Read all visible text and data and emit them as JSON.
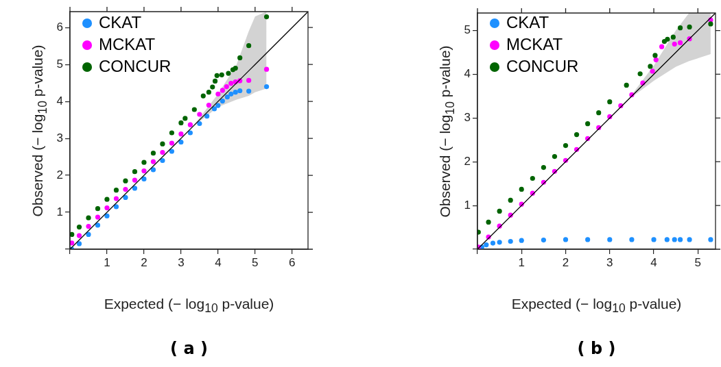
{
  "chart_data": [
    {
      "type": "scatter",
      "xlabel": "Expected (− log$_{10}$ p-value)",
      "ylabel": "Observed (− log$_{10}$ p-value)",
      "annotations": [
        "( a )"
      ],
      "xlim": [
        0,
        6.43
      ],
      "ylim": [
        0,
        6.43
      ],
      "xticks": [
        {
          "value": 0,
          "label": null
        },
        1,
        2,
        3,
        4,
        5,
        6
      ],
      "yticks": [
        {
          "value": 0,
          "label": null
        },
        1,
        2,
        3,
        4,
        5,
        6
      ],
      "grid": false,
      "legend": "top left",
      "marker": "circle",
      "series": [
        {
          "name": "CKAT",
          "color": "#1e90ff",
          "x": [
            0.05,
            0.25,
            0.5,
            0.75,
            1,
            1.25,
            1.5,
            1.75,
            2,
            2.25,
            2.5,
            2.75,
            3,
            3.25,
            3.5,
            3.7,
            3.9,
            4.0,
            4.12,
            4.25,
            4.35,
            4.47,
            4.59,
            4.83,
            5.31
          ],
          "values": [
            0.0,
            0.15,
            0.4,
            0.65,
            0.9,
            1.15,
            1.4,
            1.65,
            1.9,
            2.15,
            2.4,
            2.65,
            2.9,
            3.15,
            3.4,
            3.6,
            3.8,
            3.89,
            4.01,
            4.12,
            4.2,
            4.25,
            4.29,
            4.28,
            4.4
          ]
        },
        {
          "name": "MCKAT",
          "color": "#ff00ff",
          "x": [
            0.05,
            0.25,
            0.5,
            0.75,
            1,
            1.25,
            1.5,
            1.75,
            2,
            2.25,
            2.5,
            2.75,
            3,
            3.25,
            3.5,
            3.75,
            4.0,
            4.12,
            4.23,
            4.35,
            4.47,
            4.59,
            4.83,
            5.31
          ],
          "values": [
            0.17,
            0.37,
            0.62,
            0.87,
            1.12,
            1.37,
            1.62,
            1.87,
            2.12,
            2.37,
            2.62,
            2.87,
            3.12,
            3.37,
            3.65,
            3.9,
            4.2,
            4.3,
            4.4,
            4.49,
            4.53,
            4.56,
            4.57,
            4.87
          ]
        },
        {
          "name": "CONCUR",
          "color": "#006400",
          "x": [
            0.05,
            0.25,
            0.5,
            0.75,
            1,
            1.25,
            1.5,
            1.75,
            2,
            2.25,
            2.5,
            2.75,
            3,
            3.11,
            3.36,
            3.6,
            3.75,
            3.85,
            3.92,
            3.97,
            4.1,
            4.28,
            4.4,
            4.47,
            4.59,
            4.83,
            5.31
          ],
          "values": [
            0.4,
            0.6,
            0.85,
            1.1,
            1.35,
            1.6,
            1.85,
            2.1,
            2.35,
            2.6,
            2.85,
            3.15,
            3.42,
            3.54,
            3.78,
            4.15,
            4.25,
            4.39,
            4.55,
            4.7,
            4.72,
            4.76,
            4.86,
            4.9,
            5.18,
            5.51,
            6.29
          ]
        },
        {
          "type": "line",
          "marker": "none",
          "color": "#000000",
          "x": [
            0,
            3.3,
            4.0,
            4.5,
            4.83,
            5.0,
            5.31,
            6.43
          ],
          "values": [
            0,
            3.3,
            4.0,
            4.5,
            4.83,
            5.0,
            5.31,
            6.43
          ],
          "lower": [
            null,
            3.3,
            3.85,
            4.05,
            4.15,
            4.25,
            4.35,
            null
          ],
          "upper": [
            null,
            3.3,
            4.2,
            5.0,
            5.9,
            6.3,
            6.43,
            null
          ]
        }
      ]
    },
    {
      "type": "scatter",
      "xlabel": "Expected (− log$_{10}$ p-value)",
      "ylabel": "Observed (− log$_{10}$ p-value)",
      "annotations": [
        "( b )"
      ],
      "xlim": [
        0,
        5.4
      ],
      "ylim": [
        0,
        5.4
      ],
      "xticks": [
        {
          "value": 0,
          "label": null
        },
        1,
        2,
        3,
        4,
        5
      ],
      "yticks": [
        {
          "value": 0,
          "label": null
        },
        1,
        2,
        3,
        4,
        5
      ],
      "grid": false,
      "legend": "top left",
      "marker": "circle",
      "series": [
        {
          "name": "CKAT",
          "color": "#1e90ff",
          "x": [
            0.1,
            0.2,
            0.35,
            0.5,
            0.75,
            1,
            1.5,
            2,
            2.5,
            3,
            3.5,
            4,
            4.3,
            4.47,
            4.6,
            4.81,
            5.29
          ],
          "values": [
            0.05,
            0.1,
            0.14,
            0.16,
            0.18,
            0.2,
            0.21,
            0.22,
            0.22,
            0.22,
            0.22,
            0.22,
            0.22,
            0.22,
            0.22,
            0.22,
            0.22
          ]
        },
        {
          "name": "MCKAT",
          "color": "#ff00ff",
          "x": [
            0.02,
            0.25,
            0.5,
            0.75,
            1,
            1.25,
            1.5,
            1.75,
            2,
            2.25,
            2.5,
            2.75,
            3,
            3.25,
            3.5,
            3.75,
            3.97,
            4.05,
            4.18,
            4.47,
            4.6,
            4.81,
            5.29
          ],
          "values": [
            0.05,
            0.28,
            0.53,
            0.78,
            1.03,
            1.28,
            1.53,
            1.78,
            2.03,
            2.28,
            2.53,
            2.78,
            3.03,
            3.28,
            3.53,
            3.8,
            4.07,
            4.33,
            4.63,
            4.69,
            4.72,
            4.81,
            5.24
          ]
        },
        {
          "name": "CONCUR",
          "color": "#006400",
          "x": [
            0.02,
            0.25,
            0.5,
            0.75,
            1,
            1.25,
            1.5,
            1.75,
            2,
            2.25,
            2.5,
            2.75,
            3,
            3.38,
            3.69,
            3.92,
            4.03,
            4.24,
            4.31,
            4.44,
            4.6,
            4.81,
            5.29
          ],
          "values": [
            0.39,
            0.62,
            0.87,
            1.12,
            1.37,
            1.62,
            1.87,
            2.12,
            2.37,
            2.62,
            2.87,
            3.12,
            3.37,
            3.75,
            4.01,
            4.18,
            4.43,
            4.75,
            4.8,
            4.85,
            5.06,
            5.08,
            5.15
          ]
        },
        {
          "type": "line",
          "marker": "none",
          "color": "#000000",
          "x": [
            0,
            3.4,
            4.0,
            4.5,
            4.8,
            5.29,
            5.4
          ],
          "values": [
            0,
            3.4,
            4.0,
            4.5,
            4.8,
            5.29,
            5.4
          ],
          "lower": [
            null,
            3.4,
            3.85,
            4.17,
            4.3,
            4.46,
            null
          ],
          "upper": [
            null,
            3.4,
            4.2,
            5.0,
            5.4,
            5.4,
            null
          ]
        }
      ]
    }
  ]
}
